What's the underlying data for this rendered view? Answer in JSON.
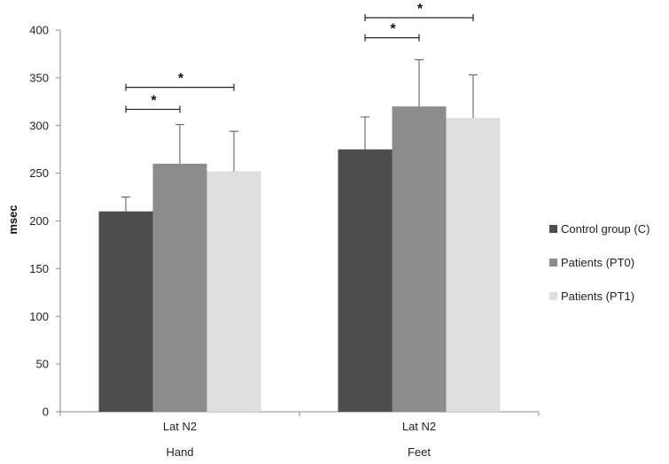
{
  "chart_data": {
    "type": "bar",
    "title": "",
    "xlabel": "",
    "ylabel": "msec",
    "ylim": [
      0,
      400
    ],
    "yticks": [
      0,
      50,
      100,
      150,
      200,
      250,
      300,
      350,
      400
    ],
    "grid": false,
    "categories": [
      {
        "label": "Lat N2",
        "sublabel": "Hand"
      },
      {
        "label": "Lat N2",
        "sublabel": "Feet"
      }
    ],
    "series": [
      {
        "name": "Control group (C)",
        "color": "#4d4d4d",
        "values": [
          210,
          275
        ],
        "errors": [
          15,
          34
        ]
      },
      {
        "name": "Patients (PT0)",
        "color": "#8c8c8c",
        "values": [
          260,
          320
        ],
        "errors": [
          41,
          49
        ]
      },
      {
        "name": "Patients (PT1)",
        "color": "#dedede",
        "values": [
          252,
          308
        ],
        "errors": [
          42,
          45
        ]
      }
    ],
    "legend_position": "right",
    "significance": [
      {
        "category": 0,
        "from_series": 0,
        "to_series": 1,
        "level": 317,
        "label": "*"
      },
      {
        "category": 0,
        "from_series": 0,
        "to_series": 2,
        "level": 340,
        "label": "*"
      },
      {
        "category": 1,
        "from_series": 0,
        "to_series": 1,
        "level": 392,
        "label": "*"
      },
      {
        "category": 1,
        "from_series": 0,
        "to_series": 2,
        "level": 413,
        "label": "*"
      }
    ]
  }
}
